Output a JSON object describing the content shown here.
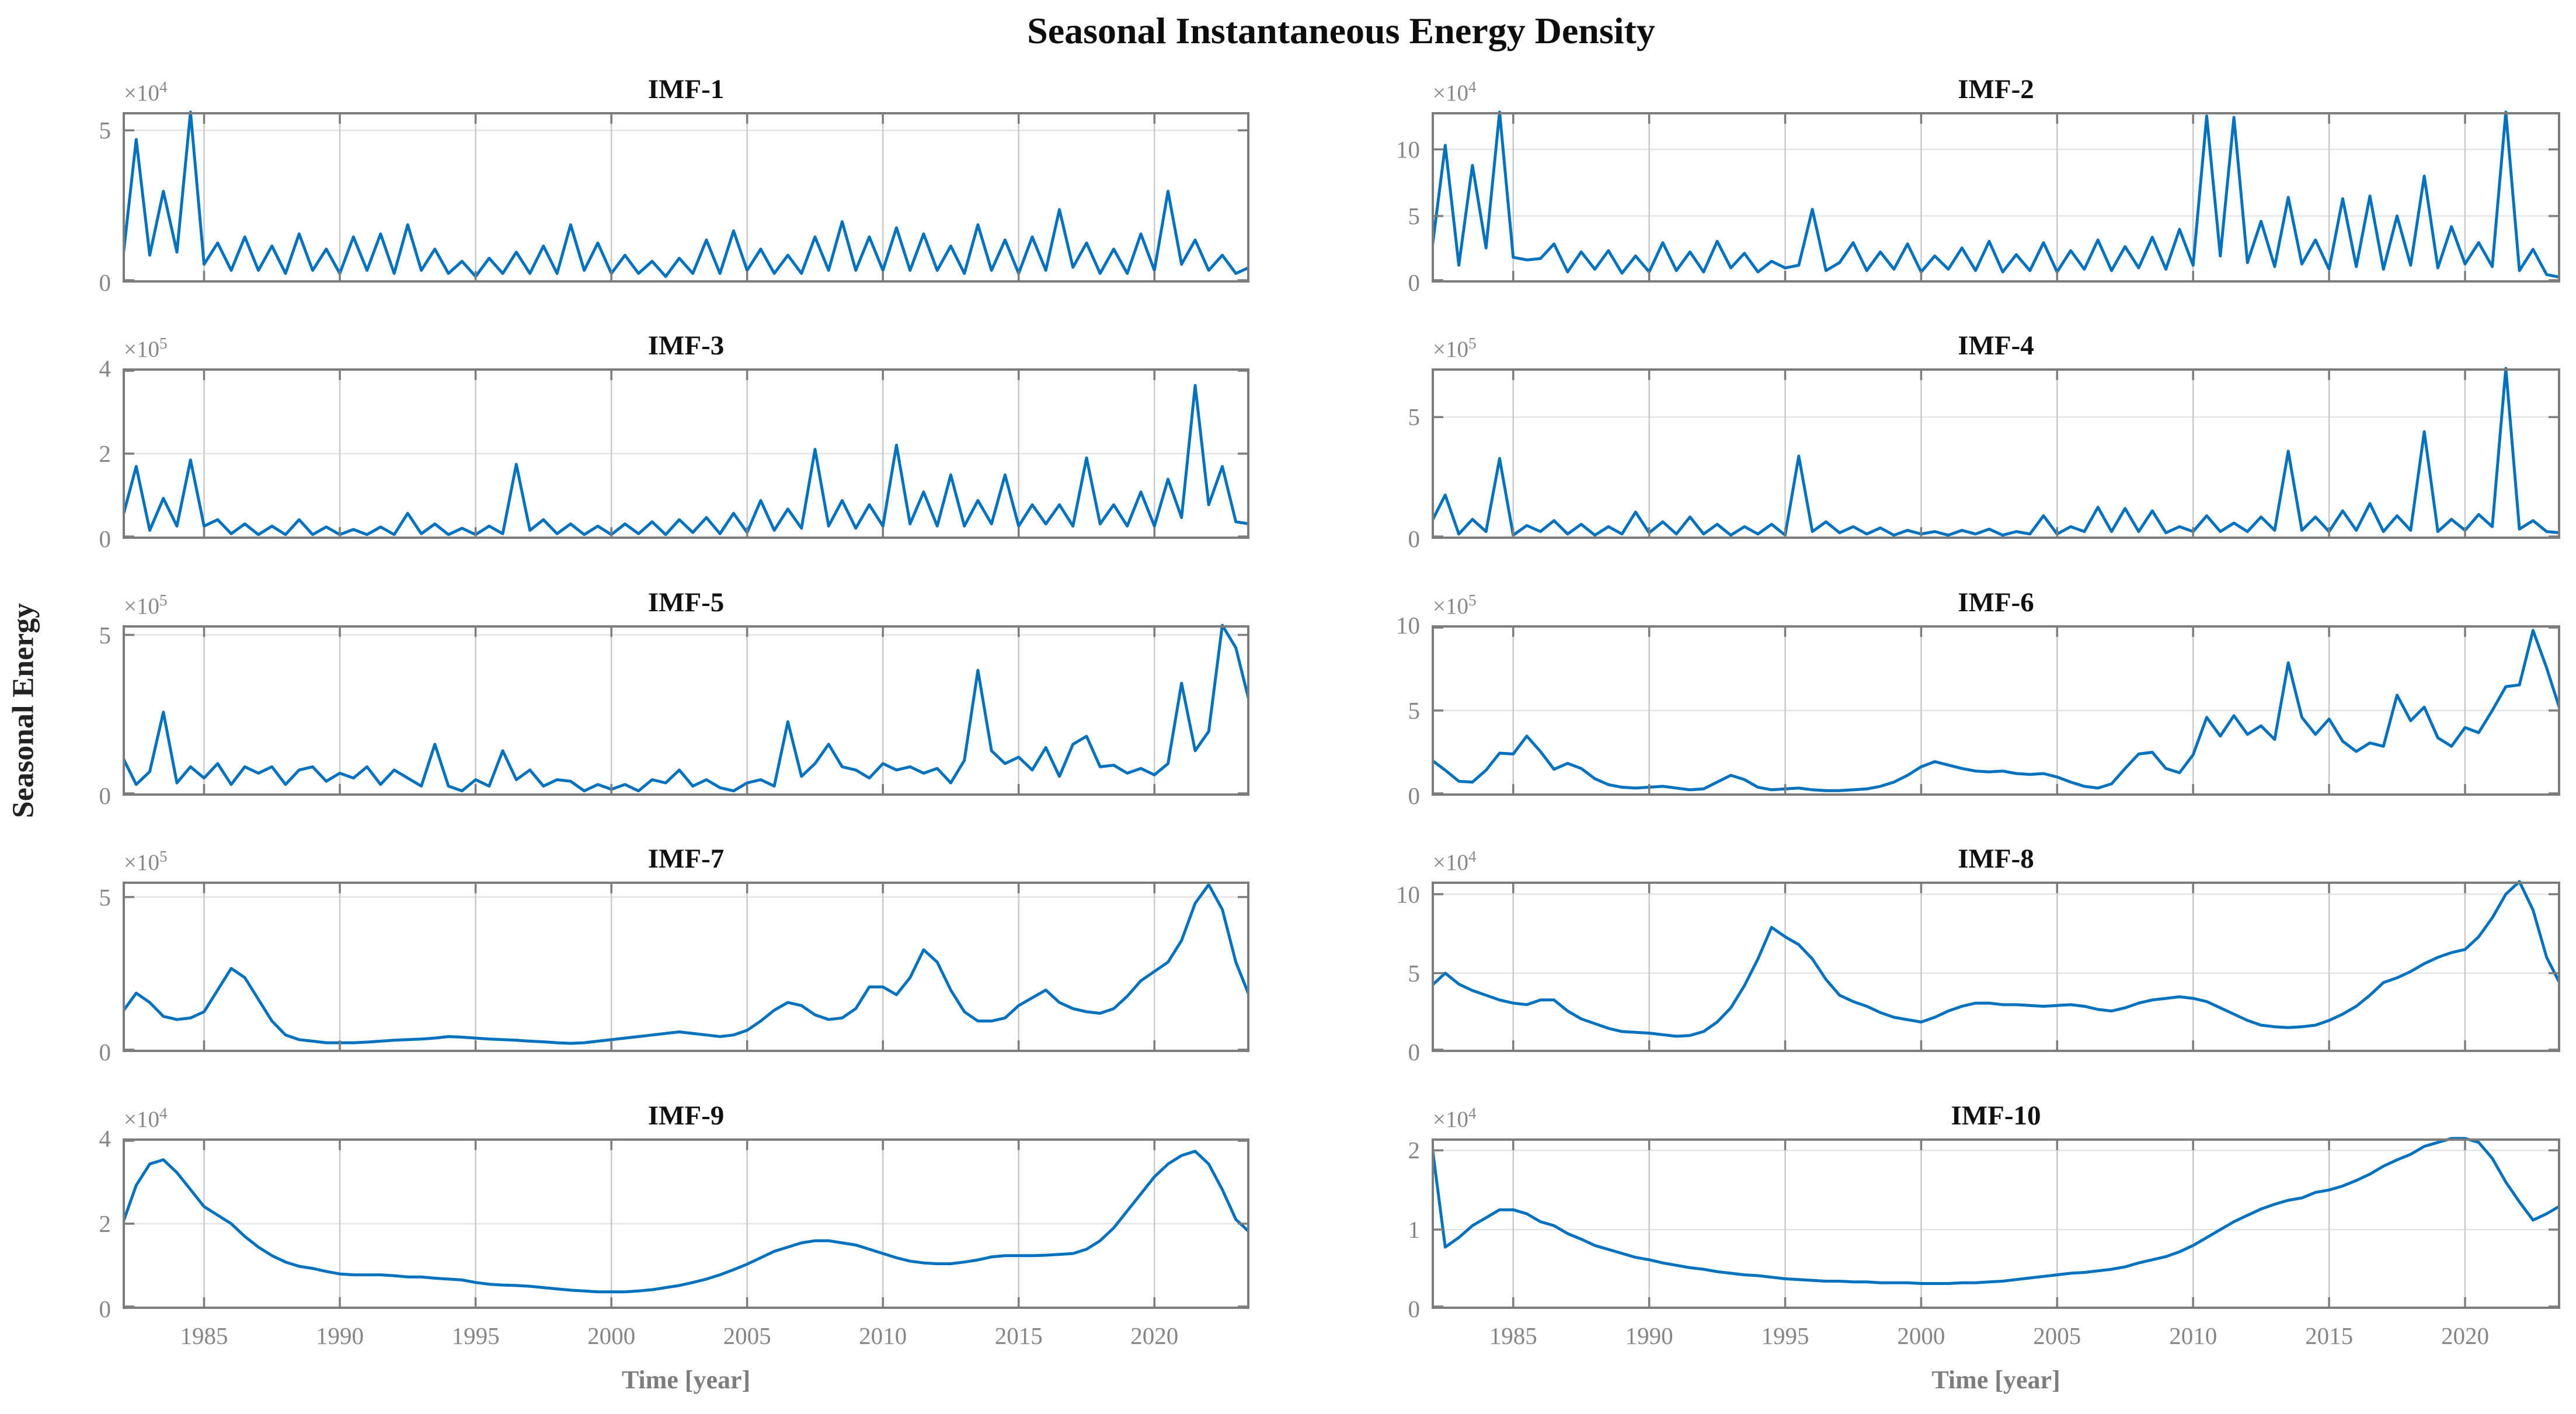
{
  "figure": {
    "suptitle": "Seasonal Instantaneous Energy Density",
    "shared_ylabel": "Seasonal Energy",
    "xlabel": "Time [year]",
    "colors": {
      "line": "#0072BD",
      "frame": "#7c7c7c",
      "grid_vertical": "#cacaca",
      "grid_horizontal": "#e4e4e4",
      "tick_label": "#858585",
      "title": "#111111"
    }
  },
  "axis": {
    "x_start": 1982,
    "x_step": 0.5,
    "xlim": [
      1982,
      2023.5
    ],
    "xticks": [
      1985,
      1990,
      1995,
      2000,
      2005,
      2010,
      2015,
      2020
    ]
  },
  "chart_data": [
    {
      "type": "line",
      "title": "IMF-1",
      "exponent_label": "×10^4",
      "unit_scale": 10000,
      "ylim": [
        0,
        5.6
      ],
      "yticks": [
        0,
        5
      ],
      "values": [
        0.7,
        4.7,
        0.9,
        3.0,
        1.0,
        5.6,
        0.6,
        1.3,
        0.4,
        1.5,
        0.4,
        1.2,
        0.3,
        1.6,
        0.4,
        1.1,
        0.3,
        1.5,
        0.4,
        1.6,
        0.3,
        1.9,
        0.4,
        1.1,
        0.3,
        0.7,
        0.2,
        0.8,
        0.3,
        1.0,
        0.3,
        1.2,
        0.3,
        1.9,
        0.4,
        1.3,
        0.3,
        0.9,
        0.3,
        0.7,
        0.2,
        0.8,
        0.3,
        1.4,
        0.3,
        1.7,
        0.4,
        1.1,
        0.3,
        0.9,
        0.3,
        1.5,
        0.4,
        2.0,
        0.4,
        1.5,
        0.4,
        1.8,
        0.4,
        1.6,
        0.4,
        1.2,
        0.3,
        1.9,
        0.4,
        1.4,
        0.3,
        1.5,
        0.4,
        2.4,
        0.5,
        1.3,
        0.3,
        1.1,
        0.3,
        1.6,
        0.4,
        3.0,
        0.6,
        1.4,
        0.4,
        0.9,
        0.3,
        0.5
      ]
    },
    {
      "type": "line",
      "title": "IMF-2",
      "exponent_label": "×10^4",
      "unit_scale": 10000,
      "ylim": [
        0,
        12.8
      ],
      "yticks": [
        0,
        5,
        10
      ],
      "values": [
        2.3,
        10.3,
        1.3,
        8.8,
        2.6,
        12.8,
        1.9,
        1.7,
        1.8,
        2.9,
        0.8,
        2.3,
        1.0,
        2.4,
        0.7,
        2.0,
        0.8,
        3.0,
        0.9,
        2.3,
        0.8,
        3.1,
        1.1,
        2.2,
        0.8,
        1.6,
        1.1,
        1.3,
        5.5,
        0.9,
        1.5,
        3.0,
        0.9,
        2.3,
        1.0,
        2.9,
        0.8,
        2.0,
        1.0,
        2.6,
        0.9,
        3.1,
        0.8,
        2.1,
        0.9,
        3.0,
        0.8,
        2.4,
        1.0,
        3.2,
        0.9,
        2.7,
        1.1,
        3.4,
        1.0,
        4.0,
        1.3,
        12.5,
        2.0,
        12.4,
        1.5,
        4.6,
        1.2,
        6.4,
        1.4,
        3.2,
        1.0,
        6.3,
        1.2,
        6.5,
        1.0,
        5.0,
        1.3,
        8.0,
        1.1,
        4.2,
        1.4,
        3.0,
        1.2,
        12.8,
        0.9,
        2.5,
        0.6,
        0.4
      ]
    },
    {
      "type": "line",
      "title": "IMF-3",
      "exponent_label": "×10^5",
      "unit_scale": 100000,
      "ylim": [
        0,
        4
      ],
      "yticks": [
        0,
        2,
        4
      ],
      "values": [
        0.5,
        1.7,
        0.2,
        0.95,
        0.3,
        1.85,
        0.3,
        0.45,
        0.12,
        0.35,
        0.1,
        0.3,
        0.1,
        0.45,
        0.1,
        0.28,
        0.1,
        0.22,
        0.1,
        0.28,
        0.1,
        0.6,
        0.12,
        0.35,
        0.1,
        0.25,
        0.1,
        0.3,
        0.12,
        1.75,
        0.2,
        0.45,
        0.12,
        0.35,
        0.1,
        0.3,
        0.1,
        0.35,
        0.12,
        0.4,
        0.1,
        0.45,
        0.15,
        0.5,
        0.12,
        0.6,
        0.15,
        0.9,
        0.2,
        0.7,
        0.25,
        2.1,
        0.3,
        0.9,
        0.25,
        0.8,
        0.3,
        2.2,
        0.35,
        1.1,
        0.3,
        1.5,
        0.3,
        0.9,
        0.35,
        1.5,
        0.3,
        0.8,
        0.35,
        0.8,
        0.3,
        1.9,
        0.35,
        0.8,
        0.3,
        1.1,
        0.3,
        1.4,
        0.5,
        3.6,
        0.8,
        1.7,
        0.4,
        0.35
      ]
    },
    {
      "type": "line",
      "title": "IMF-4",
      "exponent_label": "×10^5",
      "unit_scale": 100000,
      "ylim": [
        0,
        7
      ],
      "yticks": [
        0,
        5
      ],
      "values": [
        0.7,
        1.8,
        0.2,
        0.8,
        0.3,
        3.3,
        0.15,
        0.55,
        0.3,
        0.75,
        0.2,
        0.6,
        0.15,
        0.5,
        0.2,
        1.1,
        0.25,
        0.7,
        0.2,
        0.9,
        0.2,
        0.6,
        0.15,
        0.5,
        0.2,
        0.6,
        0.15,
        3.4,
        0.3,
        0.7,
        0.25,
        0.5,
        0.2,
        0.45,
        0.15,
        0.35,
        0.2,
        0.3,
        0.15,
        0.35,
        0.2,
        0.4,
        0.15,
        0.3,
        0.2,
        0.95,
        0.2,
        0.5,
        0.3,
        1.3,
        0.3,
        1.25,
        0.3,
        1.15,
        0.25,
        0.5,
        0.3,
        0.95,
        0.3,
        0.65,
        0.3,
        0.9,
        0.35,
        3.6,
        0.35,
        0.9,
        0.3,
        1.15,
        0.35,
        1.45,
        0.3,
        0.95,
        0.35,
        4.4,
        0.3,
        0.8,
        0.35,
        1.0,
        0.5,
        7.0,
        0.4,
        0.75,
        0.3,
        0.25
      ]
    },
    {
      "type": "line",
      "title": "IMF-5",
      "exponent_label": "×10^5",
      "unit_scale": 100000,
      "ylim": [
        0,
        5.3
      ],
      "yticks": [
        0,
        5
      ],
      "values": [
        1.2,
        0.35,
        0.75,
        2.6,
        0.4,
        0.9,
        0.55,
        1.0,
        0.35,
        0.9,
        0.7,
        0.9,
        0.35,
        0.8,
        0.9,
        0.45,
        0.7,
        0.55,
        0.9,
        0.35,
        0.8,
        0.55,
        0.3,
        1.6,
        0.3,
        0.15,
        0.5,
        0.3,
        1.4,
        0.5,
        0.8,
        0.3,
        0.5,
        0.45,
        0.15,
        0.35,
        0.2,
        0.35,
        0.15,
        0.5,
        0.4,
        0.8,
        0.3,
        0.5,
        0.25,
        0.15,
        0.4,
        0.5,
        0.3,
        2.3,
        0.6,
        1.0,
        1.6,
        0.9,
        0.8,
        0.55,
        1.0,
        0.8,
        0.9,
        0.7,
        0.85,
        0.4,
        1.1,
        3.9,
        1.4,
        1.0,
        1.2,
        0.8,
        1.5,
        0.6,
        1.6,
        1.85,
        0.9,
        0.95,
        0.7,
        0.85,
        0.65,
        1.0,
        3.5,
        1.4,
        2.0,
        5.3,
        4.6,
        2.9
      ]
    },
    {
      "type": "line",
      "title": "IMF-6",
      "exponent_label": "×10^5",
      "unit_scale": 100000,
      "ylim": [
        0,
        10
      ],
      "yticks": [
        0,
        5,
        10
      ],
      "values": [
        2.1,
        1.5,
        0.85,
        0.8,
        1.5,
        2.5,
        2.45,
        3.5,
        2.6,
        1.55,
        1.9,
        1.6,
        1.0,
        0.65,
        0.5,
        0.45,
        0.5,
        0.55,
        0.45,
        0.35,
        0.4,
        0.8,
        1.2,
        0.95,
        0.5,
        0.35,
        0.4,
        0.45,
        0.35,
        0.3,
        0.3,
        0.35,
        0.4,
        0.55,
        0.8,
        1.2,
        1.7,
        2.0,
        1.8,
        1.6,
        1.45,
        1.4,
        1.45,
        1.3,
        1.25,
        1.3,
        1.1,
        0.8,
        0.55,
        0.45,
        0.7,
        1.6,
        2.45,
        2.55,
        1.6,
        1.35,
        2.4,
        4.6,
        3.5,
        4.7,
        3.6,
        4.1,
        3.3,
        7.8,
        4.6,
        3.6,
        4.5,
        3.2,
        2.6,
        3.1,
        2.9,
        5.9,
        4.4,
        5.2,
        3.4,
        2.9,
        4.0,
        3.7,
        5.0,
        6.4,
        6.5,
        9.7,
        7.5,
        5.0
      ]
    },
    {
      "type": "line",
      "title": "IMF-7",
      "exponent_label": "×10^5",
      "unit_scale": 100000,
      "ylim": [
        0,
        5.5
      ],
      "yticks": [
        0,
        5
      ],
      "values": [
        1.3,
        1.9,
        1.6,
        1.15,
        1.05,
        1.1,
        1.3,
        2.0,
        2.7,
        2.4,
        1.7,
        1.0,
        0.55,
        0.4,
        0.35,
        0.3,
        0.3,
        0.3,
        0.32,
        0.35,
        0.38,
        0.4,
        0.42,
        0.45,
        0.5,
        0.48,
        0.45,
        0.42,
        0.4,
        0.38,
        0.35,
        0.33,
        0.3,
        0.28,
        0.3,
        0.35,
        0.4,
        0.45,
        0.5,
        0.55,
        0.6,
        0.65,
        0.6,
        0.55,
        0.5,
        0.55,
        0.7,
        1.0,
        1.35,
        1.6,
        1.5,
        1.2,
        1.05,
        1.1,
        1.4,
        2.1,
        2.1,
        1.85,
        2.4,
        3.3,
        2.9,
        2.0,
        1.3,
        1.0,
        1.0,
        1.1,
        1.5,
        1.75,
        2.0,
        1.6,
        1.4,
        1.3,
        1.25,
        1.4,
        1.8,
        2.3,
        2.6,
        2.9,
        3.6,
        4.8,
        5.4,
        4.6,
        2.9,
        1.8
      ]
    },
    {
      "type": "line",
      "title": "IMF-8",
      "exponent_label": "×10^4",
      "unit_scale": 10000,
      "ylim": [
        0,
        10.8
      ],
      "yticks": [
        0,
        5,
        10
      ],
      "values": [
        4.2,
        5.0,
        4.3,
        3.9,
        3.6,
        3.3,
        3.1,
        3.0,
        3.3,
        3.3,
        2.6,
        2.1,
        1.8,
        1.5,
        1.3,
        1.25,
        1.2,
        1.1,
        1.0,
        1.05,
        1.3,
        1.9,
        2.8,
        4.2,
        5.9,
        7.9,
        7.3,
        6.8,
        5.9,
        4.6,
        3.6,
        3.2,
        2.9,
        2.5,
        2.2,
        2.05,
        1.9,
        2.2,
        2.6,
        2.9,
        3.1,
        3.1,
        3.0,
        3.0,
        2.95,
        2.9,
        2.95,
        3.0,
        2.9,
        2.7,
        2.6,
        2.8,
        3.1,
        3.3,
        3.4,
        3.5,
        3.4,
        3.2,
        2.8,
        2.4,
        2.0,
        1.7,
        1.6,
        1.55,
        1.6,
        1.7,
        2.0,
        2.4,
        2.9,
        3.6,
        4.4,
        4.7,
        5.1,
        5.6,
        6.0,
        6.3,
        6.5,
        7.3,
        8.5,
        10.0,
        10.8,
        9.0,
        6.0,
        4.3
      ]
    },
    {
      "type": "line",
      "title": "IMF-9",
      "exponent_label": "×10^4",
      "unit_scale": 10000,
      "ylim": [
        0,
        4
      ],
      "yticks": [
        0,
        2,
        4
      ],
      "values": [
        2.0,
        2.9,
        3.4,
        3.5,
        3.2,
        2.8,
        2.4,
        2.2,
        2.0,
        1.7,
        1.45,
        1.25,
        1.1,
        1.0,
        0.95,
        0.88,
        0.82,
        0.8,
        0.8,
        0.8,
        0.78,
        0.75,
        0.75,
        0.72,
        0.7,
        0.68,
        0.62,
        0.58,
        0.56,
        0.55,
        0.53,
        0.5,
        0.47,
        0.44,
        0.42,
        0.4,
        0.4,
        0.4,
        0.42,
        0.45,
        0.5,
        0.55,
        0.62,
        0.7,
        0.8,
        0.92,
        1.05,
        1.2,
        1.35,
        1.45,
        1.55,
        1.6,
        1.6,
        1.55,
        1.5,
        1.4,
        1.3,
        1.2,
        1.12,
        1.08,
        1.06,
        1.06,
        1.1,
        1.15,
        1.22,
        1.25,
        1.25,
        1.25,
        1.26,
        1.28,
        1.3,
        1.4,
        1.6,
        1.9,
        2.3,
        2.7,
        3.1,
        3.4,
        3.6,
        3.7,
        3.4,
        2.8,
        2.1,
        1.8
      ]
    },
    {
      "type": "line",
      "title": "IMF-10",
      "exponent_label": "×10^4",
      "unit_scale": 10000,
      "ylim": [
        0,
        2.15
      ],
      "yticks": [
        0,
        1,
        2
      ],
      "values": [
        2.1,
        0.78,
        0.9,
        1.05,
        1.15,
        1.25,
        1.25,
        1.2,
        1.1,
        1.05,
        0.95,
        0.88,
        0.8,
        0.75,
        0.7,
        0.65,
        0.62,
        0.58,
        0.55,
        0.52,
        0.5,
        0.47,
        0.45,
        0.43,
        0.42,
        0.4,
        0.38,
        0.37,
        0.36,
        0.35,
        0.35,
        0.34,
        0.34,
        0.33,
        0.33,
        0.33,
        0.32,
        0.32,
        0.32,
        0.33,
        0.33,
        0.34,
        0.35,
        0.37,
        0.39,
        0.41,
        0.43,
        0.45,
        0.46,
        0.48,
        0.5,
        0.53,
        0.58,
        0.62,
        0.66,
        0.72,
        0.8,
        0.9,
        1.0,
        1.1,
        1.18,
        1.26,
        1.32,
        1.37,
        1.4,
        1.47,
        1.5,
        1.55,
        1.62,
        1.7,
        1.8,
        1.88,
        1.95,
        2.05,
        2.1,
        2.15,
        2.15,
        2.1,
        1.9,
        1.6,
        1.35,
        1.12,
        1.2,
        1.3
      ]
    }
  ]
}
